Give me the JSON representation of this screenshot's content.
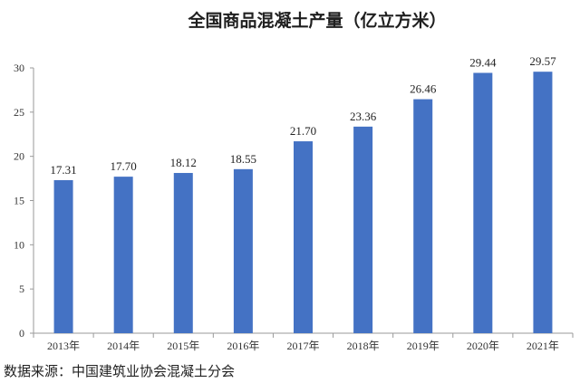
{
  "chart_data": {
    "type": "bar",
    "title": "全国商品混凝土产量（亿立方米）",
    "categories": [
      "2013年",
      "2014年",
      "2015年",
      "2016年",
      "2017年",
      "2018年",
      "2019年",
      "2020年",
      "2021年"
    ],
    "values": [
      17.31,
      17.7,
      18.12,
      18.55,
      21.7,
      23.36,
      26.46,
      29.44,
      29.57
    ],
    "data_labels": [
      "17.31",
      "17.70",
      "18.12",
      "18.55",
      "21.70",
      "23.36",
      "26.46",
      "29.44",
      "29.57"
    ],
    "ylim": [
      0,
      30
    ],
    "yticks": [
      0,
      5,
      10,
      15,
      20,
      25,
      30
    ],
    "grid": false,
    "legend": "none",
    "bar_color": "#4472C4"
  },
  "source": "数据来源：中国建筑业协会混凝土分会"
}
